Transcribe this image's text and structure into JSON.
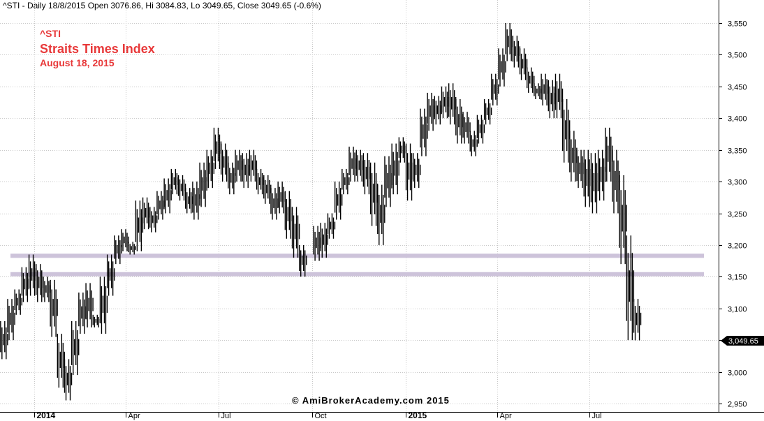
{
  "header": {
    "text": "^STI - Daily 18/8/2015 Open 3076.86, Hi 3084.83, Lo 3049.65, Close 3049.65 (-0.6%)"
  },
  "annotation": {
    "symbol": "^STI",
    "name": "Straits Times Index",
    "date": "August 18, 2015",
    "color": "#e8393a"
  },
  "watermark": "© AmiBrokerAcademy.com 2015",
  "last_price_label": "3,049.65",
  "chart_data": {
    "type": "line",
    "style": "price bars (OHLC)",
    "grid": true,
    "y_axis": {
      "position": "right",
      "range": [
        2940,
        3565
      ],
      "ticks": [
        2950,
        3000,
        3050,
        3100,
        3150,
        3200,
        3250,
        3300,
        3350,
        3400,
        3450,
        3500,
        3550
      ],
      "tick_labels": [
        "2,950",
        "3,000",
        "3,050",
        "3,100",
        "3,150",
        "3,200",
        "3,250",
        "3,300",
        "3,350",
        "3,400",
        "3,450",
        "3,500",
        "3,550"
      ]
    },
    "x_axis": {
      "tick_labels": [
        "2014",
        "Apr",
        "Jul",
        "Oct",
        "2015",
        "Apr",
        "Jul"
      ],
      "bold_labels": [
        "2014",
        "2015"
      ],
      "tick_dates": [
        "2014-01-01",
        "2014-04-01",
        "2014-07-01",
        "2014-10-01",
        "2015-01-01",
        "2015-04-01",
        "2015-07-01"
      ],
      "range": [
        "2013-11-28",
        "2015-11-05"
      ]
    },
    "horizontal_levels": [
      {
        "value": 3183,
        "color": "#cdc3da"
      },
      {
        "value": 3154,
        "color": "#cdc3da"
      }
    ],
    "series": [
      {
        "x": [
          "2013-12-02",
          "2013-12-09",
          "2013-12-16",
          "2013-12-23",
          "2013-12-30",
          "2014-01-06",
          "2014-01-13",
          "2014-01-20",
          "2014-01-27",
          "2014-02-03",
          "2014-02-10",
          "2014-02-17",
          "2014-02-24",
          "2014-03-03",
          "2014-03-10",
          "2014-03-17",
          "2014-03-24",
          "2014-03-31",
          "2014-04-07",
          "2014-04-14",
          "2014-04-21",
          "2014-04-28",
          "2014-05-05",
          "2014-05-12",
          "2014-05-19",
          "2014-05-26",
          "2014-06-02",
          "2014-06-09",
          "2014-06-16",
          "2014-06-23",
          "2014-06-30",
          "2014-07-07",
          "2014-07-14",
          "2014-07-21",
          "2014-07-28",
          "2014-08-04",
          "2014-08-11",
          "2014-08-18",
          "2014-08-25",
          "2014-09-01",
          "2014-09-08",
          "2014-09-15",
          "2014-09-22",
          "2014-09-29",
          "2014-10-06",
          "2014-10-13",
          "2014-10-20",
          "2014-10-27",
          "2014-11-03",
          "2014-11-10",
          "2014-11-17",
          "2014-11-24",
          "2014-12-01",
          "2014-12-08",
          "2014-12-15",
          "2014-12-22",
          "2014-12-29",
          "2015-01-05",
          "2015-01-12",
          "2015-01-19",
          "2015-01-26",
          "2015-02-02",
          "2015-02-09",
          "2015-02-16",
          "2015-02-23",
          "2015-03-02",
          "2015-03-09",
          "2015-03-16",
          "2015-03-23",
          "2015-03-30",
          "2015-04-06",
          "2015-04-13",
          "2015-04-20",
          "2015-04-27",
          "2015-05-04",
          "2015-05-11",
          "2015-05-18",
          "2015-05-25",
          "2015-06-01",
          "2015-06-08",
          "2015-06-15",
          "2015-06-22",
          "2015-06-29",
          "2015-07-06",
          "2015-07-13",
          "2015-07-20",
          "2015-07-27",
          "2015-08-03",
          "2015-08-10",
          "2015-08-17"
        ],
        "high": [
          3080,
          3115,
          3130,
          3165,
          3185,
          3170,
          3150,
          3145,
          3060,
          3020,
          3080,
          3125,
          3140,
          3090,
          3150,
          3185,
          3215,
          3225,
          3205,
          3270,
          3275,
          3260,
          3285,
          3305,
          3320,
          3310,
          3290,
          3300,
          3330,
          3350,
          3385,
          3360,
          3330,
          3350,
          3345,
          3350,
          3320,
          3310,
          3290,
          3300,
          3285,
          3260,
          3200,
          3150,
          3230,
          3235,
          3250,
          3300,
          3320,
          3355,
          3350,
          3345,
          3330,
          3295,
          3340,
          3360,
          3370,
          3360,
          3345,
          3415,
          3440,
          3435,
          3450,
          3455,
          3430,
          3410,
          3380,
          3405,
          3430,
          3470,
          3510,
          3550,
          3530,
          3510,
          3480,
          3455,
          3470,
          3460,
          3470,
          3430,
          3380,
          3350,
          3350,
          3345,
          3350,
          3385,
          3350,
          3310,
          3215,
          3115
        ],
        "low": [
          3020,
          3050,
          3090,
          3110,
          3120,
          3110,
          3110,
          3055,
          2975,
          2955,
          2995,
          3060,
          3070,
          3070,
          3060,
          3120,
          3170,
          3190,
          3185,
          3190,
          3225,
          3220,
          3240,
          3250,
          3280,
          3270,
          3250,
          3240,
          3260,
          3290,
          3320,
          3300,
          3280,
          3300,
          3290,
          3300,
          3280,
          3265,
          3240,
          3250,
          3210,
          3180,
          3150,
          3150,
          3175,
          3180,
          3210,
          3240,
          3280,
          3300,
          3300,
          3280,
          3230,
          3200,
          3260,
          3280,
          3330,
          3270,
          3290,
          3340,
          3380,
          3390,
          3400,
          3390,
          3360,
          3360,
          3340,
          3360,
          3390,
          3420,
          3450,
          3490,
          3480,
          3460,
          3440,
          3430,
          3420,
          3400,
          3400,
          3330,
          3300,
          3290,
          3260,
          3250,
          3270,
          3300,
          3250,
          3170,
          3050,
          3049.65
        ]
      }
    ]
  }
}
